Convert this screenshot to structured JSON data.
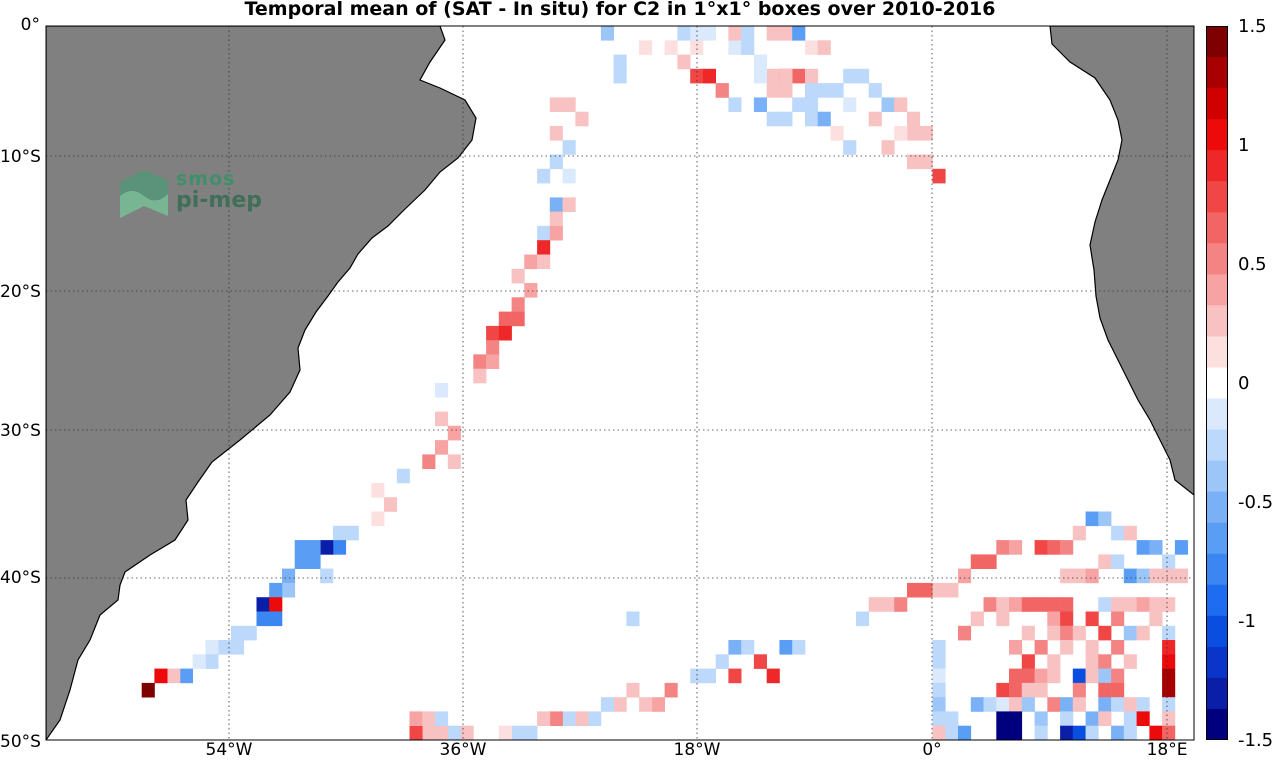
{
  "title": "Temporal mean of (SAT - In situ) for C2 in 1°x1° boxes over 2010-2016",
  "lat_labels": [
    "0°",
    "10°S",
    "20°S",
    "30°S",
    "40°S",
    "50°S"
  ],
  "lon_labels": [
    "54°W",
    "36°W",
    "18°W",
    "0°",
    "18°E"
  ],
  "colorbar": {
    "labels": [
      "1.5",
      "1",
      "0.5",
      "0",
      "-0.5",
      "-1",
      "-1.5"
    ],
    "range": [
      -1.5,
      1.5
    ],
    "colors": [
      "#00007f",
      "#0a1ea8",
      "#0a35c8",
      "#0a4ee0",
      "#1e6df0",
      "#3c86f2",
      "#5a9df4",
      "#7ab1f6",
      "#9cc6f8",
      "#bcd8fa",
      "#dbe9fc",
      "#ffffff",
      "#fce0e0",
      "#f9c2c2",
      "#f7a3a3",
      "#f48484",
      "#f26565",
      "#f04646",
      "#ee2828",
      "#ec0a0a",
      "#d00000",
      "#a80000",
      "#7f0000"
    ]
  },
  "logo": {
    "line1": "smos",
    "line2": "pi-mep"
  },
  "map_extent": {
    "lon": [
      -70,
      20
    ],
    "lat": [
      -50,
      0
    ]
  },
  "colors": {
    "land": "#808080",
    "grid": "#444444",
    "coast": "#000000"
  },
  "chart_data": {
    "type": "heatmap",
    "title": "Temporal mean of (SAT - In situ) for C2 in 1°x1° boxes over 2010-2016",
    "xlabel": "",
    "ylabel": "",
    "x_ticks": [
      "54°W",
      "36°W",
      "18°W",
      "0°",
      "18°E"
    ],
    "y_ticks": [
      "0°",
      "10°S",
      "20°S",
      "30°S",
      "40°S",
      "50°S"
    ],
    "clim": [
      -1.5,
      1.5
    ],
    "cells": [
      [
        -26,
        -0.5,
        -0.4
      ],
      [
        -25,
        -2.5,
        -0.2
      ],
      [
        -25,
        -3.5,
        -0.2
      ],
      [
        -23,
        -1.5,
        0.1
      ],
      [
        -21,
        -1.5,
        0.1
      ],
      [
        -19,
        -1.5,
        0.1
      ],
      [
        -16,
        -0.5,
        0.1
      ],
      [
        -16,
        -1.5,
        -0.1
      ],
      [
        -15,
        -1.5,
        -0.2
      ],
      [
        -13,
        -3.5,
        0.3
      ],
      [
        -12,
        -3.5,
        0.7
      ],
      [
        -11,
        -3.5,
        0.6
      ],
      [
        -10,
        -3.5,
        0.3
      ],
      [
        -13,
        -4.5,
        0.3
      ],
      [
        -17,
        -4.5,
        0.3
      ],
      [
        -16,
        -5.5,
        -0.2
      ],
      [
        -14,
        -5.5,
        -0.5
      ],
      [
        -13,
        -6.5,
        -0.3
      ],
      [
        -12,
        -6.5,
        -0.3
      ],
      [
        -10,
        -5.5,
        -0.3
      ],
      [
        -7,
        -3.5,
        -0.2
      ],
      [
        -6,
        -3.5,
        -0.2
      ],
      [
        -5,
        -4.5,
        -0.2
      ],
      [
        -4,
        -5.5,
        -0.4
      ],
      [
        -3,
        -5.5,
        0.2
      ],
      [
        -2,
        -6.5,
        0.3
      ],
      [
        -2,
        -7.5,
        0.2
      ],
      [
        -1,
        -7.5,
        0.3
      ],
      [
        -7,
        -5.5,
        -0.1
      ],
      [
        -5,
        -6.5,
        0.2
      ],
      [
        -3,
        -7.5,
        0.1
      ],
      [
        -4,
        -8.5,
        0.2
      ],
      [
        -2,
        -9.5,
        0.3
      ],
      [
        -1,
        -9.5,
        0.2
      ],
      [
        0,
        -10.5,
        0.8
      ],
      [
        -30,
        -5.5,
        0.2
      ],
      [
        -29,
        -5.5,
        0.2
      ],
      [
        -28,
        -6.5,
        0.2
      ],
      [
        -30,
        -7.5,
        0.3
      ],
      [
        -29,
        -8.5,
        -0.3
      ],
      [
        -30,
        -9.5,
        -0.2
      ],
      [
        -31,
        -10.5,
        -0.2
      ],
      [
        -29,
        -10.5,
        -0.1
      ],
      [
        -30,
        -12.5,
        -0.5
      ],
      [
        -29,
        -12.5,
        0.3
      ],
      [
        -30,
        -13.5,
        0.3
      ],
      [
        -31,
        -14.5,
        -0.3
      ],
      [
        -30,
        -14.5,
        0.4
      ],
      [
        -31,
        -15.5,
        0.9
      ],
      [
        -32,
        -16.5,
        0.4
      ],
      [
        -31,
        -16.5,
        0.2
      ],
      [
        -33,
        -17.5,
        0.3
      ],
      [
        -32,
        -18.5,
        0.4
      ],
      [
        -33,
        -19.5,
        0.5
      ],
      [
        -34,
        -20.5,
        0.6
      ],
      [
        -33,
        -20.5,
        0.7
      ],
      [
        -35,
        -21.5,
        0.8
      ],
      [
        -34,
        -21.5,
        0.9
      ],
      [
        -35,
        -22.5,
        0.5
      ],
      [
        -36,
        -23.5,
        0.5
      ],
      [
        -35,
        -23.5,
        0.4
      ],
      [
        -36,
        -24.5,
        0.3
      ],
      [
        -39,
        -25.5,
        -0.1
      ],
      [
        -39,
        -27.5,
        0.3
      ],
      [
        -38,
        -28.5,
        0.4
      ],
      [
        -39,
        -29.5,
        0.4
      ],
      [
        -40,
        -30.5,
        0.5
      ],
      [
        -38,
        -30.5,
        0.3
      ],
      [
        -42,
        -31.5,
        -0.3
      ],
      [
        -44,
        -32.5,
        0.1
      ],
      [
        -43,
        -33.5,
        0.2
      ],
      [
        -44,
        -34.5,
        0.1
      ],
      [
        -46,
        -35.5,
        -0.2
      ],
      [
        -47,
        -35.5,
        -0.2
      ],
      [
        -47,
        -36.5,
        -0.8
      ],
      [
        -48,
        -36.5,
        -1.3
      ],
      [
        -49,
        -36.5,
        -0.7
      ],
      [
        -50,
        -36.5,
        -0.7
      ],
      [
        -49,
        -37.5,
        -0.7
      ],
      [
        -50,
        -37.5,
        -0.6
      ],
      [
        -48,
        -38.5,
        -0.2
      ],
      [
        -51,
        -38.5,
        -0.5
      ],
      [
        -51,
        -39.5,
        -0.4
      ],
      [
        -52,
        -39.5,
        -0.6
      ],
      [
        -53,
        -40.5,
        -1.3
      ],
      [
        -52,
        -40.5,
        1.0
      ],
      [
        -53,
        -41.5,
        -0.8
      ],
      [
        -52,
        -41.5,
        -0.8
      ],
      [
        -54,
        -42.5,
        -0.3
      ],
      [
        -55,
        -42.5,
        -0.3
      ],
      [
        -55,
        -43.5,
        -0.3
      ],
      [
        -56,
        -43.5,
        -0.2
      ],
      [
        -57,
        -43.5,
        -0.1
      ],
      [
        -57,
        -44.5,
        -0.2
      ],
      [
        -58,
        -44.5,
        -0.1
      ],
      [
        -59,
        -45.5,
        -0.7
      ],
      [
        -60,
        -45.5,
        0.3
      ],
      [
        -61,
        -45.5,
        1.0
      ],
      [
        -62,
        -46.5,
        1.4
      ],
      [
        -24,
        -41.5,
        -0.2
      ],
      [
        -16,
        -43.5,
        -0.5
      ],
      [
        -15,
        -43.5,
        -0.3
      ],
      [
        -17,
        -44.5,
        -0.3
      ],
      [
        -16,
        -45.5,
        0.8
      ],
      [
        -14,
        -44.5,
        0.8
      ],
      [
        -13,
        -45.5,
        0.9
      ],
      [
        -18,
        -45.5,
        -0.3
      ],
      [
        -19,
        -45.5,
        -0.2
      ],
      [
        -12,
        -43.5,
        -0.6
      ],
      [
        -11,
        -43.5,
        -0.2
      ],
      [
        -21,
        -46.5,
        0.5
      ],
      [
        -22,
        -47.5,
        0.4
      ],
      [
        -23,
        -47.5,
        0.2
      ],
      [
        -24,
        -46.5,
        0.2
      ],
      [
        -25,
        -47.5,
        0.3
      ],
      [
        -26,
        -47.5,
        -0.2
      ],
      [
        -27,
        -48.5,
        -0.3
      ],
      [
        -28,
        -48.5,
        0.2
      ],
      [
        -29,
        -48.5,
        -0.2
      ],
      [
        -30,
        -48.5,
        0.5
      ],
      [
        -31,
        -48.5,
        0.3
      ],
      [
        -32,
        -49.5,
        -0.2
      ],
      [
        -33,
        -49.5,
        -0.3
      ],
      [
        -34,
        -49.5,
        0.1
      ],
      [
        -37,
        -49.5,
        0.2
      ],
      [
        -38,
        -49.5,
        -0.2
      ],
      [
        -39,
        -49.5,
        0.3
      ],
      [
        -40,
        -49.5,
        0.3
      ],
      [
        -41,
        -49.5,
        0.8
      ],
      [
        -41,
        -48.5,
        0.4
      ],
      [
        -40,
        -48.5,
        0.3
      ],
      [
        -39,
        -48.5,
        -0.3
      ],
      [
        -39,
        -50.5,
        0.3
      ],
      [
        -6,
        -41.5,
        -0.3
      ],
      [
        -5,
        -40.5,
        0.3
      ],
      [
        -4,
        -40.5,
        0.2
      ],
      [
        -3,
        -40.5,
        0.5
      ],
      [
        -2,
        -39.5,
        0.6
      ],
      [
        -1,
        -39.5,
        0.6
      ],
      [
        0,
        -39.5,
        0.3
      ],
      [
        1,
        -39.5,
        0.3
      ],
      [
        2,
        -38.5,
        0.4
      ],
      [
        3,
        -37.5,
        0.6
      ],
      [
        4,
        -37.5,
        0.6
      ],
      [
        5,
        -36.5,
        0.5
      ],
      [
        6,
        -36.5,
        0.4
      ],
      [
        8,
        -36.5,
        0.8
      ],
      [
        9,
        -36.5,
        0.6
      ],
      [
        10,
        -36.5,
        0.5
      ],
      [
        11,
        -35.5,
        0.3
      ],
      [
        12,
        -34.5,
        -0.6
      ],
      [
        13,
        -34.5,
        -0.4
      ],
      [
        14,
        -35.5,
        -0.2
      ],
      [
        15,
        -35.5,
        0.3
      ],
      [
        16,
        -36.5,
        -0.7
      ],
      [
        17,
        -36.5,
        -0.5
      ],
      [
        18,
        -37.5,
        -0.3
      ],
      [
        19,
        -36.5,
        -0.7
      ],
      [
        10,
        -38.5,
        0.3
      ],
      [
        11,
        -38.5,
        0.3
      ],
      [
        12,
        -38.5,
        0.4
      ],
      [
        13,
        -37.5,
        0.2
      ],
      [
        14,
        -37.5,
        -0.3
      ],
      [
        15,
        -38.5,
        -0.6
      ],
      [
        16,
        -38.5,
        -0.4
      ],
      [
        17,
        -38.5,
        0.2
      ],
      [
        18,
        -38.5,
        0.2
      ],
      [
        19,
        -38.5,
        0.2
      ],
      [
        4,
        -40.5,
        0.5
      ],
      [
        5,
        -40.5,
        0.3
      ],
      [
        6,
        -40.5,
        0.4
      ],
      [
        7,
        -40.5,
        0.6
      ],
      [
        8,
        -40.5,
        0.7
      ],
      [
        9,
        -40.5,
        0.7
      ],
      [
        10,
        -40.5,
        0.6
      ],
      [
        13,
        -40.5,
        -0.3
      ],
      [
        14,
        -40.5,
        0.3
      ],
      [
        15,
        -40.5,
        0.3
      ],
      [
        16,
        -40.5,
        0.4
      ],
      [
        17,
        -40.5,
        0.3
      ],
      [
        18,
        -40.5,
        0.3
      ],
      [
        3,
        -41.5,
        0.3
      ],
      [
        5,
        -41.5,
        0.3
      ],
      [
        9,
        -41.5,
        0.4
      ],
      [
        10,
        -41.5,
        0.8
      ],
      [
        12,
        -41.5,
        0.8
      ],
      [
        14,
        -41.5,
        0.5
      ],
      [
        17,
        -41.5,
        0.3
      ],
      [
        2,
        -42.5,
        0.5
      ],
      [
        7,
        -42.5,
        0.3
      ],
      [
        9,
        -42.5,
        0.2
      ],
      [
        10,
        -42.5,
        0.5
      ],
      [
        11,
        -42.5,
        0.3
      ],
      [
        13,
        -42.5,
        0.8
      ],
      [
        15,
        -42.5,
        -0.4
      ],
      [
        16,
        -42.5,
        0.2
      ],
      [
        18,
        -42.5,
        -0.3
      ],
      [
        0,
        -43.5,
        -0.3
      ],
      [
        6,
        -43.5,
        0.4
      ],
      [
        8,
        -43.5,
        0.5
      ],
      [
        10,
        -43.5,
        0.3
      ],
      [
        12,
        -43.5,
        0.3
      ],
      [
        14,
        -43.5,
        0.5
      ],
      [
        18,
        -43.5,
        0.9
      ],
      [
        0,
        -44.5,
        -0.2
      ],
      [
        7,
        -44.5,
        0.8
      ],
      [
        9,
        -44.5,
        0.3
      ],
      [
        12,
        -44.5,
        0.3
      ],
      [
        13,
        -44.5,
        0.5
      ],
      [
        15,
        -44.5,
        0.2
      ],
      [
        18,
        -44.5,
        1.0
      ],
      [
        0,
        -45.5,
        -0.1
      ],
      [
        6,
        -45.5,
        0.7
      ],
      [
        7,
        -45.5,
        0.6
      ],
      [
        8,
        -45.5,
        0.4
      ],
      [
        9,
        -45.5,
        0.3
      ],
      [
        11,
        -45.5,
        -1.0
      ],
      [
        12,
        -45.5,
        0.3
      ],
      [
        13,
        -45.5,
        -0.4
      ],
      [
        14,
        -45.5,
        0.5
      ],
      [
        18,
        -45.5,
        1.3
      ],
      [
        0,
        -46.5,
        -0.2
      ],
      [
        5,
        -46.5,
        0.8
      ],
      [
        6,
        -46.5,
        0.6
      ],
      [
        7,
        -46.5,
        0.3
      ],
      [
        8,
        -46.5,
        0.3
      ],
      [
        11,
        -46.5,
        0.5
      ],
      [
        13,
        -46.5,
        0.6
      ],
      [
        14,
        -46.5,
        0.6
      ],
      [
        18,
        -46.5,
        1.3
      ],
      [
        0,
        -47.5,
        -0.4
      ],
      [
        3,
        -47.5,
        -0.5
      ],
      [
        4,
        -47.5,
        -0.3
      ],
      [
        5,
        -47.5,
        -0.1
      ],
      [
        6,
        -47.5,
        0.3
      ],
      [
        7,
        -47.5,
        -0.4
      ],
      [
        9,
        -47.5,
        0.5
      ],
      [
        10,
        -47.5,
        -0.5
      ],
      [
        11,
        -47.5,
        0.3
      ],
      [
        13,
        -47.5,
        -0.5
      ],
      [
        14,
        -47.5,
        -0.3
      ],
      [
        15,
        -47.5,
        0.3
      ],
      [
        16,
        -47.5,
        -0.2
      ],
      [
        18,
        -47.5,
        -0.2
      ],
      [
        0,
        -48.5,
        -0.3
      ],
      [
        1,
        -48.5,
        -0.2
      ],
      [
        5,
        -48.5,
        -1.4
      ],
      [
        6,
        -48.5,
        -1.4
      ],
      [
        8,
        -48.5,
        -0.4
      ],
      [
        10,
        -48.5,
        -0.2
      ],
      [
        12,
        -48.5,
        -0.5
      ],
      [
        13,
        -48.5,
        0.2
      ],
      [
        15,
        -48.5,
        -0.3
      ],
      [
        16,
        -48.5,
        1.1
      ],
      [
        18,
        -48.5,
        0.3
      ],
      [
        0,
        -49.5,
        0.2
      ],
      [
        1,
        -49.5,
        -0.3
      ],
      [
        2,
        -49.5,
        -0.6
      ],
      [
        5,
        -49.5,
        -1.4
      ],
      [
        6,
        -49.5,
        -1.4
      ],
      [
        8,
        -49.5,
        -0.3
      ],
      [
        10,
        -49.5,
        -1.3
      ],
      [
        11,
        -49.5,
        -1.0
      ],
      [
        12,
        -49.5,
        -0.3
      ],
      [
        14,
        -49.5,
        -0.5
      ],
      [
        15,
        -49.5,
        -0.2
      ],
      [
        17,
        -49.5,
        1.0
      ],
      [
        18,
        -49.5,
        0.6
      ],
      [
        -20,
        -0.5,
        -0.3
      ],
      [
        -19,
        -0.5,
        -0.1
      ],
      [
        -18,
        -0.5,
        -0.1
      ],
      [
        -16,
        -0.5,
        0.2
      ],
      [
        -15,
        -0.5,
        -0.2
      ],
      [
        -13,
        -0.5,
        0.3
      ],
      [
        -12,
        -0.5,
        0.2
      ],
      [
        -11,
        -0.5,
        -0.6
      ],
      [
        -10,
        -1.5,
        0.1
      ],
      [
        -9,
        -1.5,
        0.2
      ],
      [
        -20,
        -2.5,
        0.3
      ],
      [
        -19,
        -3.5,
        0.8
      ],
      [
        -18,
        -3.5,
        0.9
      ],
      [
        -17,
        -4.5,
        0.5
      ],
      [
        -14,
        -2.5,
        -0.1
      ],
      [
        -14,
        -3.5,
        -0.1
      ],
      [
        -12,
        -3.5,
        0.2
      ],
      [
        -12,
        -4.5,
        0.2
      ],
      [
        -10,
        -4.5,
        -0.2
      ],
      [
        -9,
        -4.5,
        -0.3
      ],
      [
        -8,
        -4.5,
        -0.2
      ],
      [
        -11,
        -5.5,
        -0.3
      ],
      [
        -10,
        -6.5,
        -0.2
      ],
      [
        -9,
        -6.5,
        -0.5
      ],
      [
        -8,
        -7.5,
        0.1
      ],
      [
        -7,
        -8.5,
        -0.2
      ]
    ]
  }
}
